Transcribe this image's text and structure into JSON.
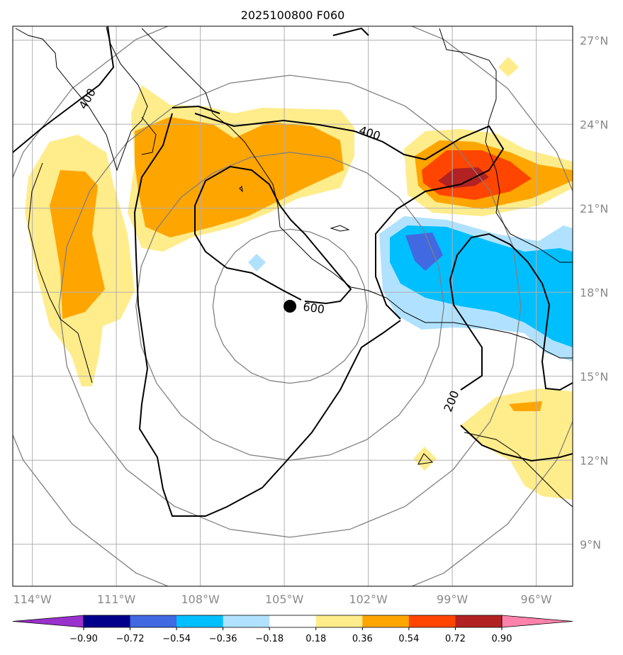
{
  "title": "2025100800 F060",
  "colors": {
    "ring": "#808080",
    "grid": "#b0b0b0",
    "coast": "#000000",
    "contour": "#000000",
    "center_marker": "#000000"
  },
  "chart_data": {
    "type": "map",
    "title": "2025100800 F060",
    "lon_range": [
      -114.7,
      -94.7
    ],
    "lat_range": [
      7.5,
      27.5
    ],
    "lon_ticks": [
      {
        "value": -114,
        "label": "114°W"
      },
      {
        "value": -111,
        "label": "111°W"
      },
      {
        "value": -108,
        "label": "108°W"
      },
      {
        "value": -105,
        "label": "105°W"
      },
      {
        "value": -102,
        "label": "102°W"
      },
      {
        "value": -99,
        "label": "99°W"
      },
      {
        "value": -96,
        "label": "96°W"
      }
    ],
    "lat_ticks": [
      {
        "value": 27,
        "label": "27°N"
      },
      {
        "value": 24,
        "label": "24°N"
      },
      {
        "value": 21,
        "label": "21°N"
      },
      {
        "value": 18,
        "label": "18°N"
      },
      {
        "value": 15,
        "label": "15°N"
      },
      {
        "value": 12,
        "label": "12°N"
      },
      {
        "value": 9,
        "label": "9°N"
      }
    ],
    "grid": true,
    "storm_center": {
      "lon": -104.8,
      "lat": 17.5
    },
    "range_rings_deg": [
      2.75,
      5.5,
      8.25,
      11.0
    ],
    "contour_labels": [
      "400",
      "600",
      "200",
      "400"
    ],
    "colorbar": {
      "ticks": [
        "−0.90",
        "−0.72",
        "−0.54",
        "−0.36",
        "−0.18",
        "0.18",
        "0.36",
        "0.54",
        "0.72",
        "0.90"
      ],
      "colors": [
        "#9932cc",
        "#00008b",
        "#4169e1",
        "#00bfff",
        "#b0e2ff",
        "#ffffff",
        "#ffec8b",
        "#ffa500",
        "#ff4500",
        "#b22222",
        "#ff82ab"
      ],
      "extend": "both"
    },
    "fill_levels": {
      "pos1": "#ffec8b",
      "pos2": "#ffa500",
      "pos3": "#ff4500",
      "pos4": "#b22222",
      "neg1": "#b0e2ff",
      "neg2": "#00bfff",
      "neg3": "#4169e1"
    }
  }
}
